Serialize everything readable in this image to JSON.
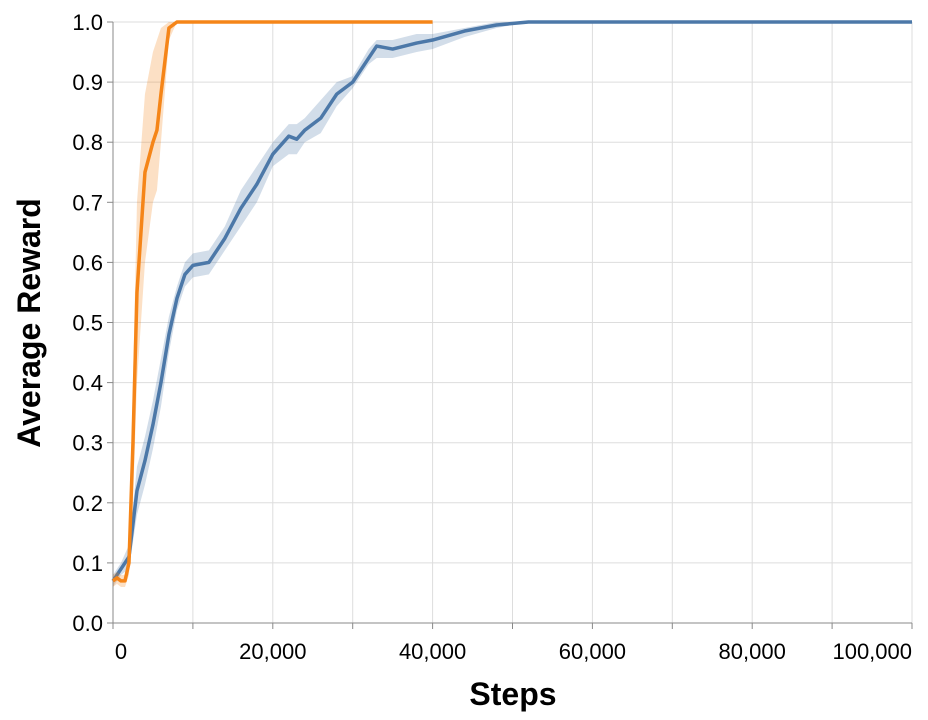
{
  "chart_data": {
    "type": "line",
    "x_label": "Steps",
    "y_label": "Average Reward",
    "xlim": [
      0,
      100000
    ],
    "ylim": [
      0,
      1
    ],
    "xticks": [
      0,
      {
        "value": 10000,
        "label": null
      },
      {
        "value": 20000,
        "label": "20,000"
      },
      {
        "value": 30000,
        "label": null
      },
      {
        "value": 40000,
        "label": "40,000"
      },
      {
        "value": 50000,
        "label": null
      },
      {
        "value": 60000,
        "label": "60,000"
      },
      {
        "value": 70000,
        "label": null
      },
      {
        "value": 80000,
        "label": "80,000"
      },
      {
        "value": 90000,
        "label": null
      },
      {
        "value": 100000,
        "label": "100,000"
      }
    ],
    "yticks": [
      {
        "value": 0,
        "label": "0.0"
      },
      {
        "value": 0.1,
        "label": "0.1"
      },
      {
        "value": 0.2,
        "label": "0.2"
      },
      {
        "value": 0.3,
        "label": "0.3"
      },
      {
        "value": 0.4,
        "label": "0.4"
      },
      {
        "value": 0.5,
        "label": "0.5"
      },
      {
        "value": 0.6,
        "label": "0.6"
      },
      {
        "value": 0.7,
        "label": "0.7"
      },
      {
        "value": 0.8,
        "label": "0.8"
      },
      {
        "value": 0.9,
        "label": "0.9"
      },
      {
        "value": 1,
        "label": "1.0"
      }
    ],
    "grid": true,
    "series": [
      {
        "color": "#4c78a8",
        "x": [
          0,
          1000,
          2000,
          3000,
          4000,
          5000,
          6000,
          7000,
          8000,
          9000,
          10000,
          12000,
          14000,
          16000,
          18000,
          20000,
          22000,
          23000,
          24000,
          26000,
          28000,
          30000,
          32000,
          33000,
          35000,
          38000,
          40000,
          44000,
          48000,
          52000,
          60000,
          80000,
          100000
        ],
        "values": [
          0.07,
          0.09,
          0.11,
          0.22,
          0.27,
          0.33,
          0.4,
          0.48,
          0.54,
          0.58,
          0.595,
          0.6,
          0.64,
          0.69,
          0.73,
          0.78,
          0.81,
          0.805,
          0.82,
          0.84,
          0.88,
          0.9,
          0.94,
          0.96,
          0.955,
          0.965,
          0.97,
          0.985,
          0.995,
          1,
          1,
          1,
          1
        ],
        "lower": [
          0.06,
          0.08,
          0.09,
          0.18,
          0.23,
          0.29,
          0.36,
          0.45,
          0.52,
          0.56,
          0.575,
          0.58,
          0.62,
          0.66,
          0.7,
          0.76,
          0.78,
          0.78,
          0.8,
          0.815,
          0.86,
          0.89,
          0.93,
          0.94,
          0.94,
          0.95,
          0.955,
          0.975,
          0.99,
          1,
          1,
          1,
          1
        ],
        "upper": [
          0.08,
          0.1,
          0.13,
          0.26,
          0.31,
          0.37,
          0.44,
          0.51,
          0.56,
          0.6,
          0.615,
          0.62,
          0.66,
          0.72,
          0.76,
          0.8,
          0.83,
          0.83,
          0.84,
          0.87,
          0.9,
          0.91,
          0.955,
          0.97,
          0.97,
          0.98,
          0.98,
          0.99,
          1,
          1,
          1,
          1,
          1
        ]
      },
      {
        "color": "#f58518",
        "x": [
          0,
          500,
          1000,
          1500,
          2000,
          2500,
          3000,
          4000,
          5000,
          5500,
          6000,
          7000,
          8000,
          20000,
          40000
        ],
        "values": [
          0.07,
          0.075,
          0.07,
          0.07,
          0.1,
          0.3,
          0.55,
          0.75,
          0.8,
          0.82,
          0.88,
          0.99,
          1,
          1,
          1
        ],
        "lower": [
          0.06,
          0.065,
          0.06,
          0.06,
          0.08,
          0.2,
          0.4,
          0.6,
          0.7,
          0.72,
          0.8,
          0.97,
          1,
          1,
          1
        ],
        "upper": [
          0.08,
          0.085,
          0.08,
          0.08,
          0.13,
          0.4,
          0.7,
          0.88,
          0.95,
          0.97,
          0.99,
          1,
          1,
          1,
          1
        ]
      }
    ]
  }
}
